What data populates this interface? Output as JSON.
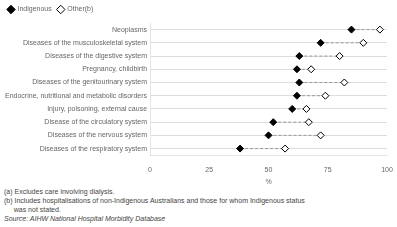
{
  "chart_data": {
    "type": "dot",
    "categories": [
      "Neoplasms",
      "Diseases of the musculoskeletal system",
      "Diseases of the digestive system",
      "Pregnancy, childbirth",
      "Diseases of the genitourinary system",
      "Endocrine, nutritional and metabolic disorders",
      "Injury, poisoning, external cause",
      "Disease of the circulatory system",
      "Diseases of the nervous system",
      "Diseases of the respiratory system"
    ],
    "series": [
      {
        "name": "Indigenous",
        "color": "#000000",
        "marker": "diamond",
        "values": [
          85,
          72,
          63,
          62,
          63,
          62,
          60,
          52,
          50,
          38
        ]
      },
      {
        "name": "Other(b)",
        "color": "#ffffff",
        "marker": "diamond",
        "values": [
          97,
          90,
          80,
          68,
          82,
          74,
          66,
          67,
          72,
          57
        ]
      }
    ],
    "orientation": "horizontal",
    "xlabel": "%",
    "xlim": [
      0,
      100
    ],
    "xticks": [
      0,
      25,
      50,
      75,
      100
    ],
    "grid": true,
    "legend": "upper left",
    "annotations": [
      "(a) Excludes care involving dialysis.",
      "(b) Includes hospitalisations of non-Indigenous Australians and those for whom Indigenous status",
      "     was not stated.",
      "Source: AIHW National Hospital Morbidity Database"
    ]
  }
}
